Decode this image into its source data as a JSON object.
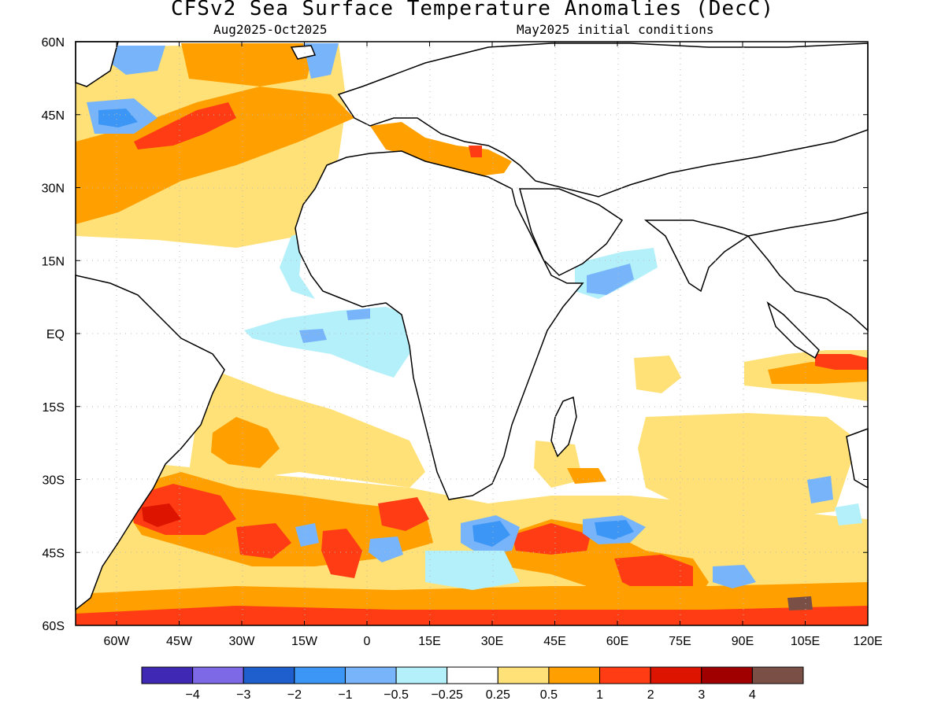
{
  "title": "CFSv2 Sea Surface Temperature Anomalies (DecC)",
  "subtitle_left": "Aug2025-Oct2025",
  "subtitle_right": "May2025 initial conditions",
  "lon_ticks": [
    "60W",
    "45W",
    "30W",
    "15W",
    "0",
    "15E",
    "30E",
    "45E",
    "60E",
    "75E",
    "90E",
    "105E",
    "120E"
  ],
  "lat_ticks": [
    "60N",
    "45N",
    "30N",
    "15N",
    "EQ",
    "15S",
    "30S",
    "45S",
    "60S"
  ],
  "colorbar": {
    "colors": [
      "#3f28b4",
      "#7d69e6",
      "#1e5fcd",
      "#3c96f5",
      "#78b4fa",
      "#b4f0fa",
      "#ffffff",
      "#ffe178",
      "#ffa000",
      "#ff3c14",
      "#dc1400",
      "#a00000",
      "#7a5046"
    ],
    "labels": [
      "−4",
      "−3",
      "−2",
      "−1",
      "−0.5",
      "−0.25",
      "0.25",
      "0.5",
      "1",
      "2",
      "3",
      "4"
    ]
  },
  "palette": {
    "land": "#ffffff",
    "coast": "#000000",
    "grid": "#b8b8b8"
  }
}
